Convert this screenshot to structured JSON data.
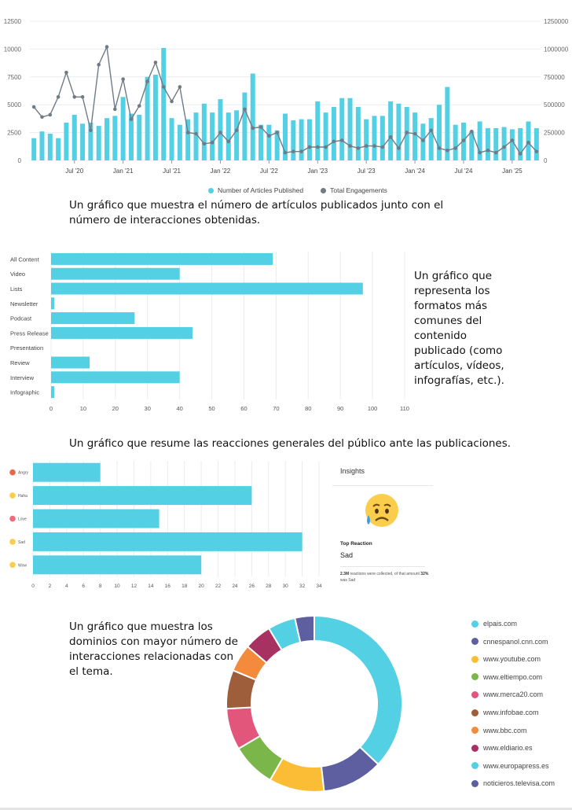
{
  "captions": {
    "articles": "Un gráfico que muestra el número de artículos publicados junto con el número de interacciones obtenidas.",
    "formats": "Un gráfico que representa los formatos más comunes del contenido publicado (como artículos, vídeos, infografías, etc.).",
    "reactions": "Un gráfico que resume las reacciones generales del público ante las publicaciones.",
    "domains": "Un gráfico que muestra los dominios con mayor número de interacciones relacionadas con el tema."
  },
  "insights": {
    "title": "Insights",
    "top_reaction_label": "Top Reaction",
    "top_reaction_value": "Sad",
    "note_prefix": "2.3M",
    "note_middle": " reactions were collected, of that amount ",
    "note_strong": "32%",
    "note_suffix": " was Sad",
    "emoji_name": "sad-sweat-face-icon"
  },
  "colors": {
    "accent": "#54d0e5",
    "line": "#6f7b85",
    "grid": "#e9ecef"
  },
  "chart_data": [
    {
      "type": "bar",
      "subtype": "bar+line dual axis",
      "left_ticks": [
        "0",
        "2500",
        "5000",
        "7500",
        "10000",
        "12500"
      ],
      "right_ticks": [
        "0",
        "250000",
        "500000",
        "750000",
        "1000000",
        "1250000"
      ],
      "ylim_left": [
        0,
        12500
      ],
      "ylim_right": [
        0,
        1250000
      ],
      "x_tick_labels": [
        "Jul '20",
        "Jan '21",
        "Jul '21",
        "Jan '22",
        "Jul '22",
        "Jan '23",
        "Jul '23",
        "Jan '24",
        "Jul '24",
        "Jan '25"
      ],
      "x_tick_months": [
        5,
        11,
        17,
        23,
        29,
        35,
        41,
        47,
        53,
        59
      ],
      "months": [
        "2020-02",
        "2020-03",
        "2020-04",
        "2020-05",
        "2020-06",
        "2020-07",
        "2020-08",
        "2020-09",
        "2020-10",
        "2020-11",
        "2020-12",
        "2021-01",
        "2021-02",
        "2021-03",
        "2021-04",
        "2021-05",
        "2021-06",
        "2021-07",
        "2021-08",
        "2021-09",
        "2021-10",
        "2021-11",
        "2021-12",
        "2022-01",
        "2022-02",
        "2022-03",
        "2022-04",
        "2022-05",
        "2022-06",
        "2022-07",
        "2022-08",
        "2022-09",
        "2022-10",
        "2022-11",
        "2022-12",
        "2023-01",
        "2023-02",
        "2023-03",
        "2023-04",
        "2023-05",
        "2023-06",
        "2023-07",
        "2023-08",
        "2023-09",
        "2023-10",
        "2023-11",
        "2023-12",
        "2024-01",
        "2024-02",
        "2024-03",
        "2024-04",
        "2024-05",
        "2024-06",
        "2024-07",
        "2024-08",
        "2024-09",
        "2024-10",
        "2024-11",
        "2024-12",
        "2025-01",
        "2025-02",
        "2025-03",
        "2025-04"
      ],
      "series": [
        {
          "name": "Number of Articles Published",
          "kind": "bar",
          "axis": "left",
          "values": [
            2000,
            2600,
            2400,
            2000,
            3400,
            4100,
            3300,
            3400,
            3100,
            3800,
            4000,
            5700,
            4200,
            4100,
            7500,
            7700,
            10100,
            3800,
            3200,
            3700,
            4300,
            5100,
            4300,
            5500,
            4300,
            4500,
            6100,
            7800,
            3200,
            3200,
            2700,
            4200,
            3600,
            3700,
            3700,
            5300,
            4300,
            4800,
            5600,
            5600,
            4800,
            3700,
            4000,
            4000,
            5300,
            5100,
            4800,
            4300,
            3300,
            3800,
            5000,
            6600,
            3200,
            3400,
            2600,
            3500,
            2900,
            2900,
            3000,
            2800,
            2900,
            3500,
            2900
          ]
        },
        {
          "name": "Total Engagements",
          "kind": "line",
          "axis": "right",
          "values": [
            480000,
            390000,
            410000,
            570000,
            790000,
            570000,
            570000,
            270000,
            860000,
            1020000,
            460000,
            730000,
            370000,
            490000,
            710000,
            880000,
            660000,
            530000,
            660000,
            250000,
            240000,
            150000,
            160000,
            250000,
            170000,
            270000,
            460000,
            290000,
            300000,
            220000,
            250000,
            70000,
            80000,
            80000,
            120000,
            120000,
            120000,
            170000,
            180000,
            130000,
            110000,
            130000,
            130000,
            120000,
            210000,
            110000,
            250000,
            240000,
            180000,
            270000,
            110000,
            90000,
            110000,
            180000,
            260000,
            70000,
            90000,
            70000,
            120000,
            180000,
            60000,
            160000,
            80000
          ]
        }
      ],
      "legend_position": "bottom"
    },
    {
      "type": "bar",
      "orientation": "horizontal",
      "categories": [
        "All Content",
        "Video",
        "Lists",
        "Newsletter",
        "Podcast",
        "Press Release",
        "Presentation",
        "Review",
        "Interview",
        "Infographic"
      ],
      "values": [
        69,
        40,
        97,
        1,
        26,
        44,
        0,
        12,
        40,
        1
      ],
      "x_ticks": [
        "0",
        "10",
        "20",
        "30",
        "40",
        "50",
        "60",
        "70",
        "80",
        "90",
        "100",
        "110"
      ],
      "xlim": [
        0,
        110
      ]
    },
    {
      "type": "bar",
      "orientation": "horizontal",
      "categories": [
        "Angry",
        "Haha",
        "Love",
        "Sad",
        "Wow"
      ],
      "icons": [
        "angry-emoji-icon",
        "haha-emoji-icon",
        "love-emoji-icon",
        "sad-emoji-icon",
        "wow-emoji-icon"
      ],
      "values": [
        8,
        26,
        15,
        32,
        20
      ],
      "x_ticks": [
        "0",
        "2",
        "4",
        "6",
        "8",
        "10",
        "12",
        "14",
        "16",
        "18",
        "20",
        "22",
        "24",
        "26",
        "28",
        "30",
        "32",
        "34"
      ],
      "xlim": [
        0,
        34
      ]
    },
    {
      "type": "pie",
      "subtype": "donut",
      "labels": [
        "elpais.com",
        "cnnespanol.cnn.com",
        "www.youtube.com",
        "www.eltiempo.com",
        "www.merca20.com",
        "www.infobae.com",
        "www.bbc.com",
        "www.eldiario.es",
        "www.europapress.es",
        "noticieros.televisa.com"
      ],
      "values": [
        36.5,
        11,
        10,
        8,
        7.5,
        7,
        5,
        5,
        5,
        3.5
      ],
      "colors": [
        "#54d0e5",
        "#5d5fa0",
        "#fbbd36",
        "#7ab649",
        "#e1567a",
        "#9e5d3b",
        "#f48a3b",
        "#a73161",
        "#54d0e5",
        "#5d5fa0"
      ]
    }
  ]
}
